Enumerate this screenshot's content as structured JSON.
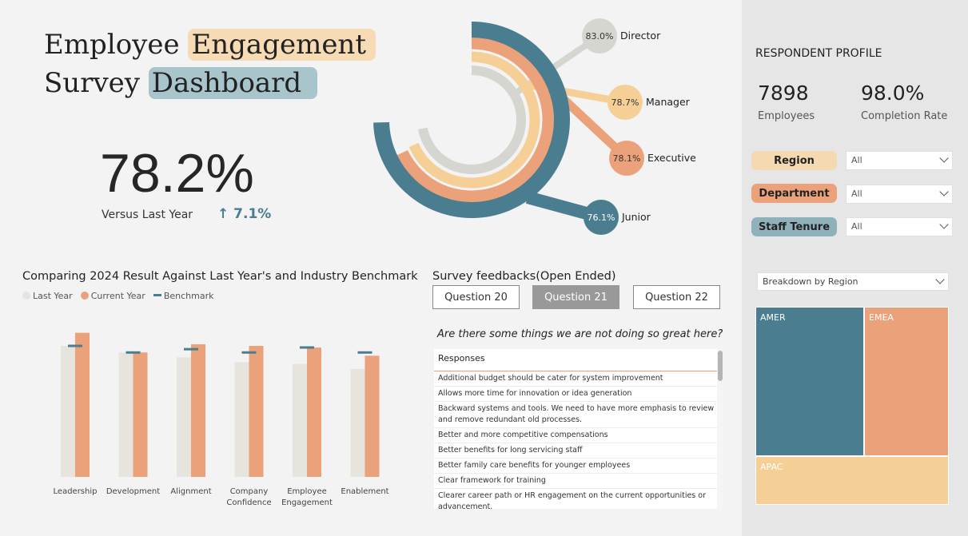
{
  "header": {
    "title_line1_plain": "Employee",
    "title_line1_highlight": "Engagement",
    "title_line2_plain": "Survey",
    "title_line2_highlight": "Dashboard"
  },
  "kpi": {
    "value": "78.2%",
    "versus_label": "Versus Last Year",
    "versus_value": "↑ 7.1%"
  },
  "radial": {
    "levels": [
      {
        "label": "Director",
        "value_text": "83.0%",
        "value": 83.0,
        "color": "#d6d6d0"
      },
      {
        "label": "Manager",
        "value_text": "78.7%",
        "value": 78.7,
        "color": "#f5cf96"
      },
      {
        "label": "Executive",
        "value_text": "78.1%",
        "value": 78.1,
        "color": "#eba27b"
      },
      {
        "label": "Junior",
        "value_text": "76.1%",
        "value": 76.1,
        "color": "#4a7d8f"
      }
    ]
  },
  "chart_data": {
    "type": "bar",
    "title": "Comparing 2024 Result Against Last Year's and Industry Benchmark",
    "categories": [
      "Leadership",
      "Development",
      "Alignment",
      "Company Confidence",
      "Employee Engagement",
      "Enablement"
    ],
    "series": [
      {
        "name": "Last Year",
        "values": [
          80,
          76,
          73,
          70,
          69,
          66
        ],
        "color": "#e6e4dd"
      },
      {
        "name": "Current Year",
        "values": [
          88,
          76,
          81,
          80,
          79,
          74
        ],
        "color": "#eba27b"
      },
      {
        "name": "Benchmark",
        "values": [
          80,
          76,
          78,
          76,
          79,
          76
        ],
        "color": "#4a7d8f"
      }
    ],
    "ylim": [
      0,
      100
    ],
    "legend": "top-left",
    "grid": false
  },
  "feedback": {
    "title": "Survey feedbacks(Open Ended)",
    "buttons": [
      "Question 20",
      "Question 21",
      "Question 22"
    ],
    "active_index": 1,
    "question": "Are there some things we are not doing so great here?",
    "column_header": "Responses",
    "responses": [
      "Additional budget should be cater for system improvement",
      "Allows more time for innovation or idea generation",
      "Backward systems and tools. We need to have more emphasis to review and remove redundant old processes.",
      "Better and more competitive compensations",
      "Better benefits for long servicing staff",
      "Better family care benefits for younger employees",
      "Clear framework for training",
      "Clearer career path or HR engagement on the current opportunities or advancement."
    ]
  },
  "profile": {
    "title": "RESPONDENT PROFILE",
    "employees_value": "7898",
    "employees_label": "Employees",
    "completion_value": "98.0%",
    "completion_label": "Completion Rate",
    "filters": [
      {
        "label": "Region",
        "value": "All",
        "color": "#f5d9b1"
      },
      {
        "label": "Department",
        "value": "All",
        "color": "#eba27b"
      },
      {
        "label": "Staff Tenure",
        "value": "All",
        "color": "#8fb1ba"
      }
    ],
    "breakdown_select": "Breakdown by Region",
    "treemap": [
      {
        "label": "AMER",
        "color": "#4a7d8f"
      },
      {
        "label": "EMEA",
        "color": "#eba27b"
      },
      {
        "label": "APAC",
        "color": "#f5cf96"
      }
    ]
  }
}
